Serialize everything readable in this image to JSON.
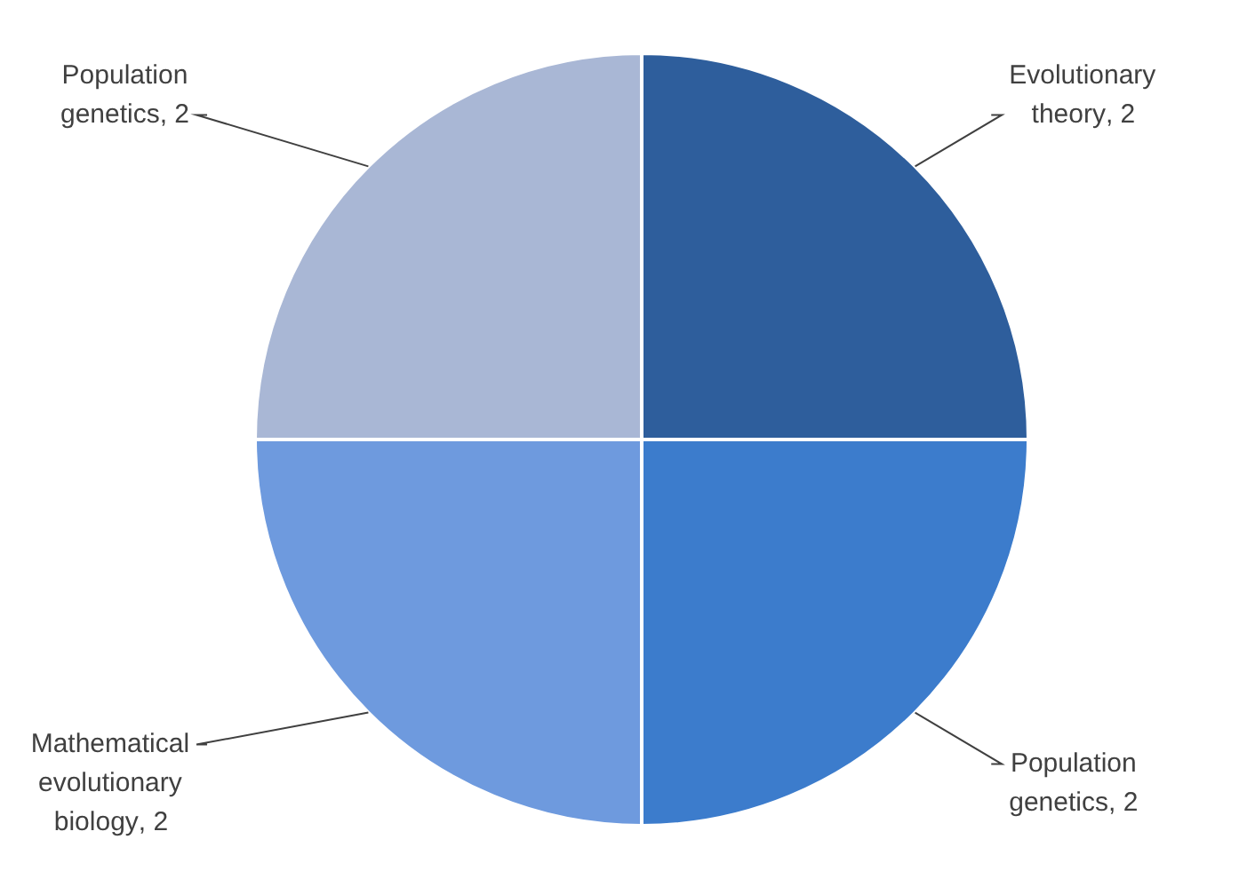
{
  "chart_data": {
    "type": "pie",
    "categories": [
      "Evolutionary theory",
      "Population genetics",
      "Mathematical evolutionary biology",
      "Population genetics"
    ],
    "values": [
      2,
      2,
      2,
      2
    ],
    "colors": [
      "#2e5e9c",
      "#3c7ccc",
      "#6e9ade",
      "#a9b7d5"
    ],
    "value_labels": [
      ", 2",
      ", 2",
      ", 2",
      ", 2"
    ]
  }
}
